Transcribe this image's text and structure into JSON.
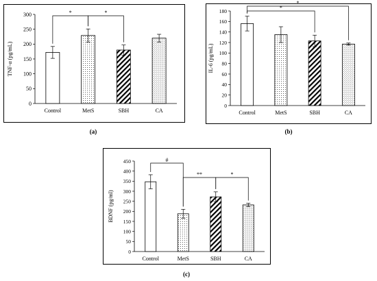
{
  "chart_data": [
    {
      "type": "bar",
      "panel_label": "(a)",
      "ylabel": "TNF-α (pg/mL)",
      "xlabel": "",
      "categories": [
        "Control",
        "MetS",
        "SBH",
        "CA"
      ],
      "values": [
        172,
        229,
        180,
        220
      ],
      "errors": [
        20,
        22,
        17,
        13
      ],
      "ylim": [
        0,
        300
      ],
      "yticks": [
        "0",
        "50",
        "100",
        "150",
        "200",
        "250",
        "300"
      ],
      "patterns": [
        "none",
        "dots",
        "hatch",
        "grid"
      ],
      "significance": [
        {
          "from": 0,
          "to": 1,
          "label": "*"
        },
        {
          "from": 1,
          "to": 2,
          "label": "*"
        }
      ]
    },
    {
      "type": "bar",
      "panel_label": "(b)",
      "ylabel": "IL-6 (pg/mL)",
      "xlabel": "",
      "categories": [
        "Control",
        "MetS",
        "SBH",
        "CA"
      ],
      "values": [
        156,
        135,
        123,
        117
      ],
      "errors": [
        14,
        15,
        11,
        2
      ],
      "ylim": [
        0,
        180
      ],
      "yticks": [
        "0",
        "20",
        "40",
        "60",
        "80",
        "100",
        "120",
        "140",
        "160",
        "180"
      ],
      "patterns": [
        "none",
        "dots",
        "hatch",
        "grid"
      ],
      "significance": [
        {
          "from": 0,
          "to": 2,
          "label": "*"
        },
        {
          "from": 0,
          "to": 3,
          "label": "*"
        }
      ]
    },
    {
      "type": "bar",
      "panel_label": "(c)",
      "ylabel": "BDNF (pg/ml)",
      "xlabel": "",
      "categories": [
        "Control",
        "MetS",
        "SBH",
        "CA"
      ],
      "values": [
        347,
        188,
        272,
        232
      ],
      "errors": [
        35,
        22,
        25,
        8
      ],
      "ylim": [
        0,
        450
      ],
      "yticks": [
        "0",
        "50",
        "100",
        "150",
        "200",
        "250",
        "300",
        "350",
        "400",
        "450"
      ],
      "patterns": [
        "none",
        "dots",
        "hatch",
        "grid"
      ],
      "significance": [
        {
          "from": 0,
          "to": 1,
          "label": "#"
        },
        {
          "from": 1,
          "to": 2,
          "label": "**"
        },
        {
          "from": 2,
          "to": 3,
          "label": "*"
        }
      ]
    }
  ]
}
